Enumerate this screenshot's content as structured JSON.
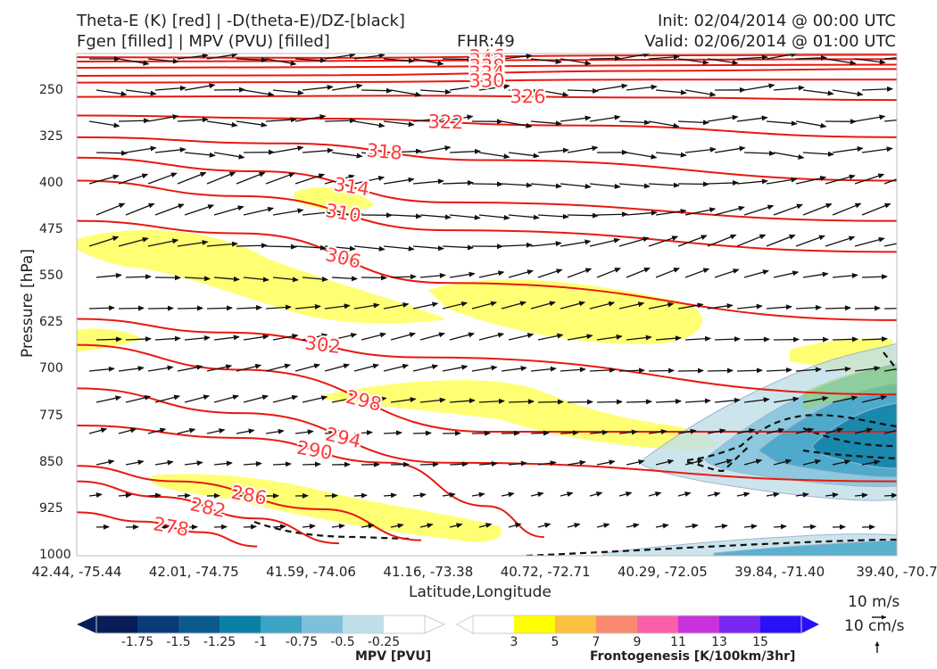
{
  "header": {
    "title_line1": "Theta-E (K) [red] | -D(theta-E)/DZ-[black]",
    "title_line2": "Fgen [filled] | MPV (PVU) [filled]",
    "fhr": "FHR:49",
    "init": "Init: 02/04/2014 @ 00:00 UTC",
    "valid": "Valid: 02/06/2014 @ 01:00 UTC"
  },
  "chart_data": {
    "type": "cross-section",
    "xlabel": "Latitude,Longitude",
    "ylabel": "Pressure [hPa]",
    "x_ticks": [
      "42.44, -75.44",
      "42.01, -74.75",
      "41.59, -74.06",
      "41.16, -73.38",
      "40.72, -72.71",
      "40.29, -72.05",
      "39.84, -71.40",
      "39.40, -70.7"
    ],
    "y_ticks": [
      250,
      325,
      400,
      475,
      550,
      625,
      700,
      775,
      850,
      925,
      1000
    ],
    "ylim": [
      1000,
      190
    ],
    "y_scale": "linear, inverted",
    "theta_e_contours": [
      {
        "label": "346",
        "points": [
          [
            0,
            196
          ],
          [
            0.3,
            197
          ],
          [
            0.7,
            193
          ],
          [
            1,
            192
          ]
        ]
      },
      {
        "label": "342",
        "points": [
          [
            0,
            203
          ],
          [
            0.3,
            202
          ],
          [
            0.7,
            200
          ],
          [
            1,
            199
          ]
        ]
      },
      {
        "label": "338",
        "points": [
          [
            0,
            213
          ],
          [
            0.3,
            212
          ],
          [
            0.7,
            209
          ],
          [
            1,
            208
          ]
        ]
      },
      {
        "label": "334",
        "points": [
          [
            0,
            226
          ],
          [
            0.3,
            225
          ],
          [
            0.7,
            218
          ],
          [
            1,
            215
          ]
        ]
      },
      {
        "label": "330",
        "points": [
          [
            0,
            237
          ],
          [
            0.3,
            236
          ],
          [
            0.7,
            232
          ],
          [
            1,
            232
          ]
        ]
      },
      {
        "label": "326",
        "points": [
          [
            0,
            260
          ],
          [
            0.4,
            258
          ],
          [
            0.7,
            261
          ],
          [
            1,
            265
          ]
        ]
      },
      {
        "label": "322",
        "points": [
          [
            0,
            290
          ],
          [
            0.3,
            295
          ],
          [
            0.6,
            306
          ],
          [
            1,
            325
          ]
        ]
      },
      {
        "label": "318",
        "points": [
          [
            0,
            325
          ],
          [
            0.25,
            335
          ],
          [
            0.5,
            362
          ],
          [
            1,
            395
          ]
        ]
      },
      {
        "label": "314",
        "points": [
          [
            0,
            358
          ],
          [
            0.22,
            380
          ],
          [
            0.45,
            430
          ],
          [
            1,
            460
          ]
        ]
      },
      {
        "label": "310",
        "points": [
          [
            0,
            395
          ],
          [
            0.2,
            420
          ],
          [
            0.45,
            475
          ],
          [
            1,
            510
          ]
        ]
      },
      {
        "label": "306",
        "points": [
          [
            0,
            460
          ],
          [
            0.2,
            480
          ],
          [
            0.45,
            560
          ],
          [
            1,
            620
          ]
        ]
      },
      {
        "label": "302",
        "points": [
          [
            0,
            618
          ],
          [
            0.18,
            640
          ],
          [
            0.42,
            680
          ],
          [
            1,
            740
          ]
        ]
      },
      {
        "label": "298",
        "points": [
          [
            0,
            660
          ],
          [
            0.2,
            700
          ],
          [
            0.5,
            800
          ],
          [
            1,
            800
          ]
        ]
      },
      {
        "label": "294",
        "points": [
          [
            0,
            730
          ],
          [
            0.2,
            770
          ],
          [
            0.45,
            850
          ],
          [
            1,
            880
          ]
        ]
      },
      {
        "label": "290",
        "points": [
          [
            0,
            790
          ],
          [
            0.2,
            810
          ],
          [
            0.38,
            850
          ],
          [
            0.5,
            920
          ],
          [
            0.57,
            970
          ]
        ]
      },
      {
        "label": "286",
        "points": [
          [
            0,
            855
          ],
          [
            0.12,
            880
          ],
          [
            0.3,
            925
          ],
          [
            0.42,
            975
          ]
        ]
      },
      {
        "label": "282",
        "points": [
          [
            0,
            880
          ],
          [
            0.1,
            905
          ],
          [
            0.22,
            940
          ],
          [
            0.32,
            980
          ]
        ]
      },
      {
        "label": "278",
        "points": [
          [
            0,
            930
          ],
          [
            0.08,
            945
          ],
          [
            0.15,
            962
          ],
          [
            0.22,
            985
          ]
        ]
      }
    ],
    "fgen_levels": [
      3,
      5,
      7,
      9,
      11,
      13,
      15
    ],
    "fgen_colors": [
      "#ffffff",
      "#ffff00",
      "#fcbf3f",
      "#f98a6f",
      "#f960a8",
      "#c832dc",
      "#7828f0",
      "#2810f8"
    ],
    "mpv_levels": [
      -1.75,
      -1.5,
      -1.25,
      -1.0,
      -0.75,
      -0.5,
      -0.25
    ],
    "mpv_colors": [
      "#081d58",
      "#0a3a78",
      "#0b5a8c",
      "#0c7fa5",
      "#3da3c5",
      "#7ec0d9",
      "#bfdfe8",
      "#ffffff"
    ],
    "colorbar_mpv_label": "MPV [PVU]",
    "colorbar_fgen_label": "Frontogenesis [K/100km/3hr]",
    "vector_key": {
      "u_label": "10 m/s",
      "w_label": "10 cm/s"
    }
  }
}
